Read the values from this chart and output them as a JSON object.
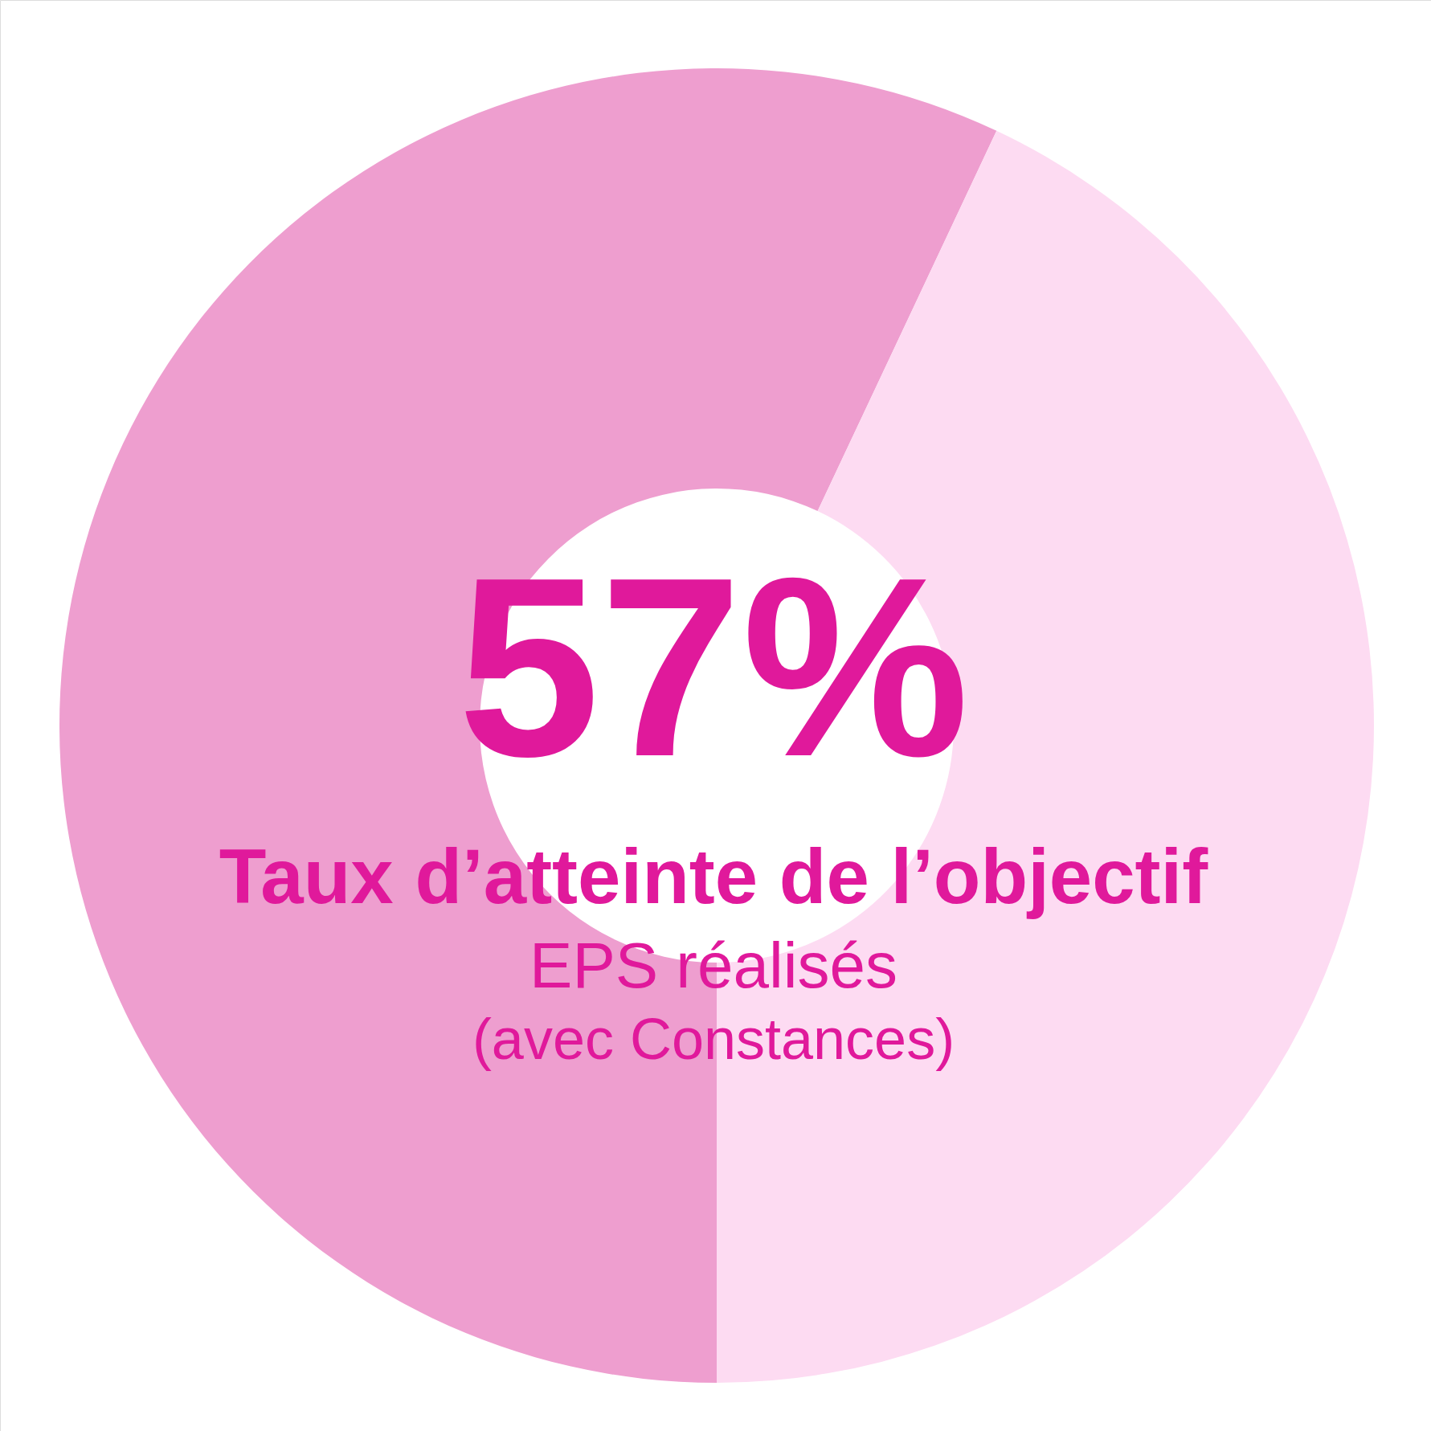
{
  "chart_data": {
    "type": "donut",
    "categories": [
      null,
      null
    ],
    "values": [
      57,
      43
    ],
    "colors": [
      "#ee9ecf",
      "#fddbf2"
    ],
    "value_labels": [
      "57%",
      null
    ],
    "title": "Taux d’atteinte de l’objectif",
    "subtitle": "EPS réalisés",
    "annotations": [
      "(avec Constances)"
    ]
  }
}
